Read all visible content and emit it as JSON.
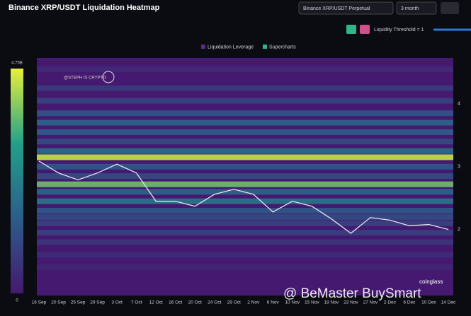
{
  "ui": {
    "exchange": "Binance XRP/USDT Perpetual",
    "range": "3 month",
    "threshold": "Liquidity Threshold = 1",
    "watermark": "@STEPH IS CRYPTO",
    "brand": "coinglass",
    "overlay": "@ BeMaster BuySmart"
  },
  "chart_data": {
    "type": "heatmap",
    "title": "Binance XRP/USDT Liquidation Heatmap",
    "legend": [
      {
        "name": "Liquidation Leverage",
        "color": "#5a2a8a"
      },
      {
        "name": "Supercharts",
        "color": "#2fb58a"
      }
    ],
    "categories": [
      "16 Sep",
      "20 Sep",
      "25 Sep",
      "29 Sep",
      "3 Oct",
      "7 Oct",
      "12 Oct",
      "16 Oct",
      "20 Oct",
      "24 Oct",
      "29 Oct",
      "2 Nov",
      "6 Nov",
      "10 Nov",
      "15 Nov",
      "19 Nov",
      "23 Nov",
      "27 Nov",
      "2 Dec",
      "6 Dec",
      "10 Dec",
      "14 Dec"
    ],
    "price": {
      "color": "#e8e0ee",
      "values": [
        3.09,
        2.9,
        2.79,
        2.9,
        3.04,
        2.9,
        2.45,
        2.45,
        2.37,
        2.56,
        2.64,
        2.56,
        2.28,
        2.45,
        2.37,
        2.17,
        1.94,
        2.19,
        2.15,
        2.06,
        2.08,
        2.0
      ]
    },
    "bands": {
      "levels": [
        4.55,
        4.25,
        4.05,
        3.85,
        3.7,
        3.55,
        3.4,
        3.25,
        3.15,
        3.0,
        2.85,
        2.72,
        2.6,
        2.45,
        2.3,
        2.2,
        2.1,
        1.95,
        1.8,
        1.6,
        1.4
      ],
      "values": [
        0.4,
        0.8,
        1.0,
        1.4,
        1.8,
        1.6,
        1.2,
        2.0,
        4.5,
        1.5,
        1.2,
        3.8,
        1.8,
        2.2,
        1.5,
        1.2,
        1.0,
        0.9,
        0.7,
        0.5,
        0.3
      ]
    },
    "colorscale": [
      "#45196f",
      "#2c5d8a",
      "#22a08a",
      "#e6f03a"
    ],
    "zlim": [
      0,
      4.75
    ],
    "zticks": [
      {
        "value": 4.75,
        "label": "4.75B"
      },
      0
    ],
    "ylim": [
      0.95,
      4.73
    ],
    "yticks": [
      2,
      3,
      4
    ]
  }
}
